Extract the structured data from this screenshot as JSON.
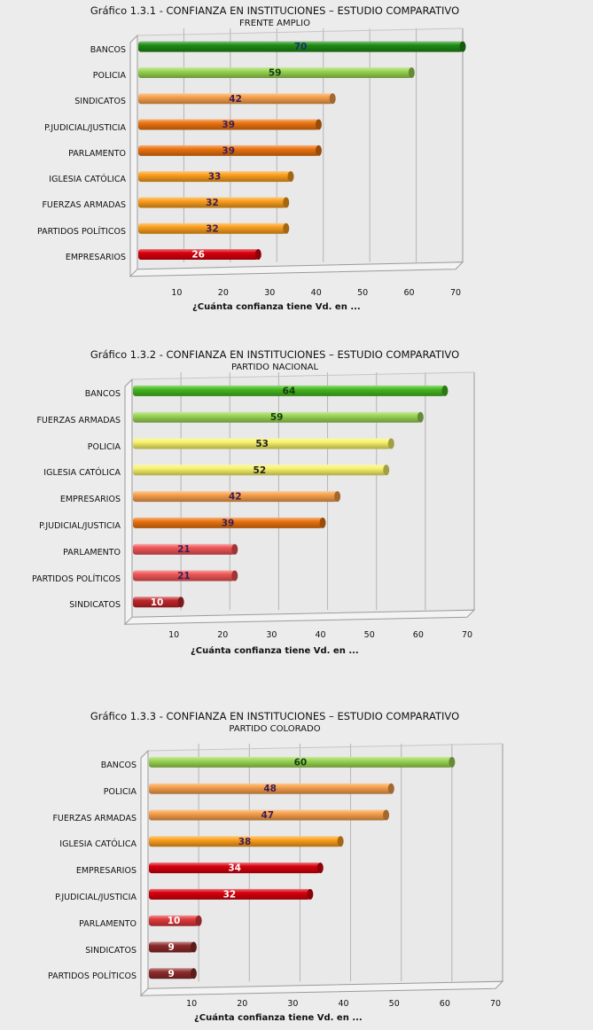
{
  "chart_data": [
    {
      "type": "bar",
      "title": "Gráfico 1.3.1 - CONFIANZA EN INSTITUCIONES – ESTUDIO COMPARATIVO",
      "subtitle": "FRENTE AMPLIO",
      "xlabel": "¿Cuánta confianza tiene Vd. en ...",
      "categories": [
        "BANCOS",
        "POLICIA",
        "SINDICATOS",
        "P.JUDICIAL/JUSTICIA",
        "PARLAMENTO",
        "IGLESIA CATÓLICA",
        "FUERZAS ARMADAS",
        "PARTIDOS POLÍTICOS",
        "EMPRESARIOS"
      ],
      "values": [
        70,
        59,
        42,
        39,
        39,
        33,
        32,
        32,
        26
      ],
      "colors": [
        "#1e8c14",
        "#9bd653",
        "#f7a04a",
        "#eb730f",
        "#eb730f",
        "#fb9f1d",
        "#fb9f1d",
        "#fb9f1d",
        "#d8000d"
      ],
      "label_colors": [
        "#1b2f6e",
        "#123d12",
        "#3a1d58",
        "#3a1d58",
        "#3a1d58",
        "#3a1d58",
        "#3a1d58",
        "#3a1d58",
        "#ffffff"
      ],
      "xticks": [
        10,
        20,
        30,
        40,
        50,
        60,
        70
      ],
      "xlim": [
        0,
        70
      ]
    },
    {
      "type": "bar",
      "title": "Gráfico 1.3.2 - CONFIANZA EN INSTITUCIONES – ESTUDIO COMPARATIVO",
      "subtitle": "PARTIDO NACIONAL",
      "xlabel": "¿Cuánta confianza tiene Vd. en ...",
      "categories": [
        "BANCOS",
        "FUERZAS ARMADAS",
        "POLICIA",
        "IGLESIA CATÓLICA",
        "EMPRESARIOS",
        "P.JUDICIAL/JUSTICIA",
        "PARLAMENTO",
        "PARTIDOS POLÍTICOS",
        "SINDICATOS"
      ],
      "values": [
        64,
        59,
        53,
        52,
        42,
        39,
        21,
        21,
        10
      ],
      "colors": [
        "#46b81e",
        "#9bd653",
        "#f8f36a",
        "#f8f36a",
        "#f7a04a",
        "#eb730f",
        "#f05556",
        "#f05556",
        "#c0252a"
      ],
      "label_colors": [
        "#123d12",
        "#123d12",
        "#222222",
        "#222222",
        "#3a1d58",
        "#3a1d58",
        "#3a1d58",
        "#3a1d58",
        "#ffffff"
      ],
      "xticks": [
        10,
        20,
        30,
        40,
        50,
        60,
        70
      ],
      "xlim": [
        0,
        70
      ]
    },
    {
      "type": "bar",
      "title": "Gráfico 1.3.3 - CONFIANZA EN INSTITUCIONES – ESTUDIO COMPARATIVO",
      "subtitle": "PARTIDO COLORADO",
      "xlabel": "¿Cuánta confianza tiene Vd. en ...",
      "categories": [
        "BANCOS",
        "POLICIA",
        "FUERZAS ARMADAS",
        "IGLESIA CATÓLICA",
        "EMPRESARIOS",
        "P.JUDICIAL/JUSTICIA",
        "PARLAMENTO",
        "SINDICATOS",
        "PARTIDOS POLÍTICOS"
      ],
      "values": [
        60,
        48,
        47,
        38,
        34,
        32,
        10,
        9,
        9
      ],
      "colors": [
        "#9bd653",
        "#f7a04a",
        "#f7a04a",
        "#fb9f1d",
        "#d8000d",
        "#d8000d",
        "#e0393c",
        "#8e2b2b",
        "#8e2b2b"
      ],
      "label_colors": [
        "#123d12",
        "#3a1d58",
        "#3a1d58",
        "#3a1d58",
        "#ffffff",
        "#ffffff",
        "#ffffff",
        "#ffffff",
        "#ffffff"
      ],
      "xticks": [
        10,
        20,
        30,
        40,
        50,
        60,
        70
      ],
      "xlim": [
        0,
        70
      ]
    }
  ]
}
